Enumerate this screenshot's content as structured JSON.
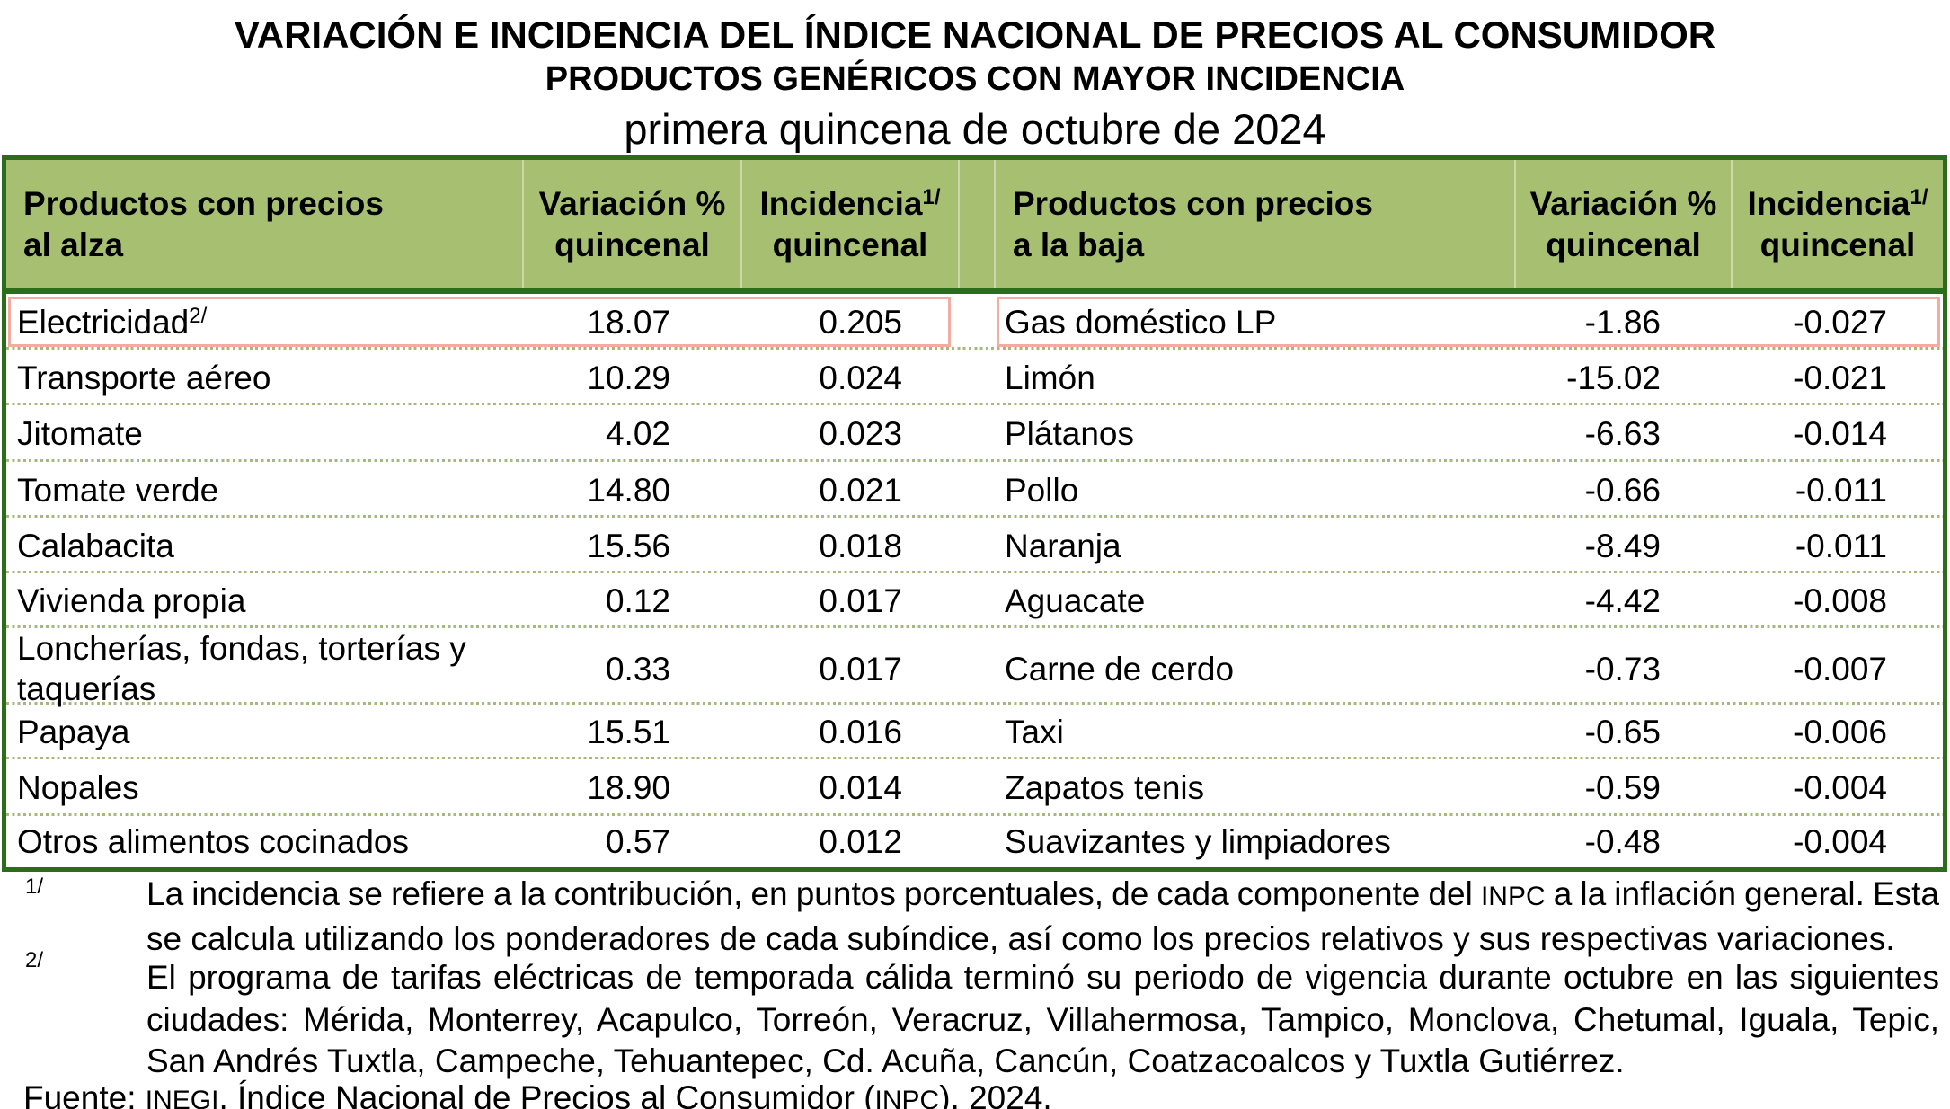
{
  "title": {
    "line1": "VARIACIÓN E INCIDENCIA DEL ÍNDICE NACIONAL DE PRECIOS AL CONSUMIDOR",
    "line2": "PRODUCTOS GENÉRICOS CON MAYOR INCIDENCIA",
    "line3": "primera quincena de octubre de 2024"
  },
  "colors": {
    "table_border_green": "#2b6d1b",
    "header_fill_green": "#a6bf71",
    "header_separator": "#ccd8ab",
    "row_dotted_line": "#a4ba7a",
    "highlight_box_border": "#f3aca2",
    "text": "#000000",
    "background": "#ffffff"
  },
  "table": {
    "up": {
      "header": {
        "name_line1": "Productos con precios",
        "name_line2": "al alza",
        "variation_line1": "Variación %",
        "variation_line2": "quincenal",
        "incidence_line1": "Incidencia",
        "incidence_sup": "1/",
        "incidence_line2": "quincenal"
      },
      "rows": [
        {
          "name": "Electricidad",
          "name_sup": "2/",
          "variation": "18.07",
          "incidence": "0.205",
          "highlight": true
        },
        {
          "name": "Transporte aéreo",
          "variation": "10.29",
          "incidence": "0.024"
        },
        {
          "name": "Jitomate",
          "variation": "4.02",
          "incidence": "0.023"
        },
        {
          "name": "Tomate verde",
          "variation": "14.80",
          "incidence": "0.021"
        },
        {
          "name": "Calabacita",
          "variation": "15.56",
          "incidence": "0.018"
        },
        {
          "name": "Vivienda propia",
          "variation": "0.12",
          "incidence": "0.017"
        },
        {
          "name": "Loncherías, fondas, torterías y taquerías",
          "variation": "0.33",
          "incidence": "0.017"
        },
        {
          "name": "Papaya",
          "variation": "15.51",
          "incidence": "0.016"
        },
        {
          "name": "Nopales",
          "variation": "18.90",
          "incidence": "0.014"
        },
        {
          "name": "Otros alimentos cocinados",
          "variation": "0.57",
          "incidence": "0.012"
        }
      ]
    },
    "down": {
      "header": {
        "name_line1": "Productos con precios",
        "name_line2": "a la baja",
        "variation_line1": "Variación %",
        "variation_line2": "quincenal",
        "incidence_line1": "Incidencia",
        "incidence_sup": "1/",
        "incidence_line2": "quincenal"
      },
      "rows": [
        {
          "name": "Gas doméstico LP",
          "variation": "-1.86",
          "incidence": "-0.027",
          "highlight": true
        },
        {
          "name": "Limón",
          "variation": "-15.02",
          "incidence": "-0.021"
        },
        {
          "name": "Plátanos",
          "variation": "-6.63",
          "incidence": "-0.014"
        },
        {
          "name": "Pollo",
          "variation": "-0.66",
          "incidence": "-0.011"
        },
        {
          "name": "Naranja",
          "variation": "-8.49",
          "incidence": "-0.011"
        },
        {
          "name": "Aguacate",
          "variation": "-4.42",
          "incidence": "-0.008"
        },
        {
          "name": "Carne de cerdo",
          "variation": "-0.73",
          "incidence": "-0.007"
        },
        {
          "name": "Taxi",
          "variation": "-0.65",
          "incidence": "-0.006"
        },
        {
          "name": "Zapatos tenis",
          "variation": "-0.59",
          "incidence": "-0.004"
        },
        {
          "name": "Suavizantes y limpiadores",
          "variation": "-0.48",
          "incidence": "-0.004"
        }
      ]
    }
  },
  "footnotes": [
    {
      "marker": "1/",
      "lines": [
        {
          "justify": true,
          "segments": [
            {
              "text": "La incidencia se refiere a la contribución, en puntos porcentuales, de cada componente del "
            },
            {
              "text": "INPC",
              "smallcaps": true
            },
            {
              "text": " a la inflación general. Esta"
            }
          ]
        },
        {
          "justify": false,
          "segments": [
            {
              "text": "se calcula utilizando los ponderadores de cada subíndice, así como los precios relativos y sus respectivas variaciones."
            }
          ]
        }
      ]
    },
    {
      "marker": "2/",
      "lines": [
        {
          "justify": true,
          "segments": [
            {
              "text": "El programa de tarifas eléctricas de temporada cálida terminó su periodo de vigencia durante octubre en las siguientes"
            }
          ]
        },
        {
          "justify": true,
          "segments": [
            {
              "text": "ciudades: Mérida, Monterrey, Acapulco, Torreón, Veracruz, Villahermosa, Tampico, Monclova, Chetumal, Iguala, Tepic,"
            }
          ]
        },
        {
          "justify": false,
          "segments": [
            {
              "text": "San Andrés Tuxtla, Campeche, Tehuantepec, Cd. Acuña, Cancún, Coatzacoalcos y Tuxtla Gutiérrez."
            }
          ]
        }
      ]
    }
  ],
  "source": {
    "segments": [
      {
        "text": "Fuente: "
      },
      {
        "text": "INEGI",
        "smallcaps": true
      },
      {
        "text": ". Índice Nacional de Precios al Consumidor ("
      },
      {
        "text": "INPC",
        "smallcaps": true
      },
      {
        "text": "), 2024."
      }
    ]
  }
}
